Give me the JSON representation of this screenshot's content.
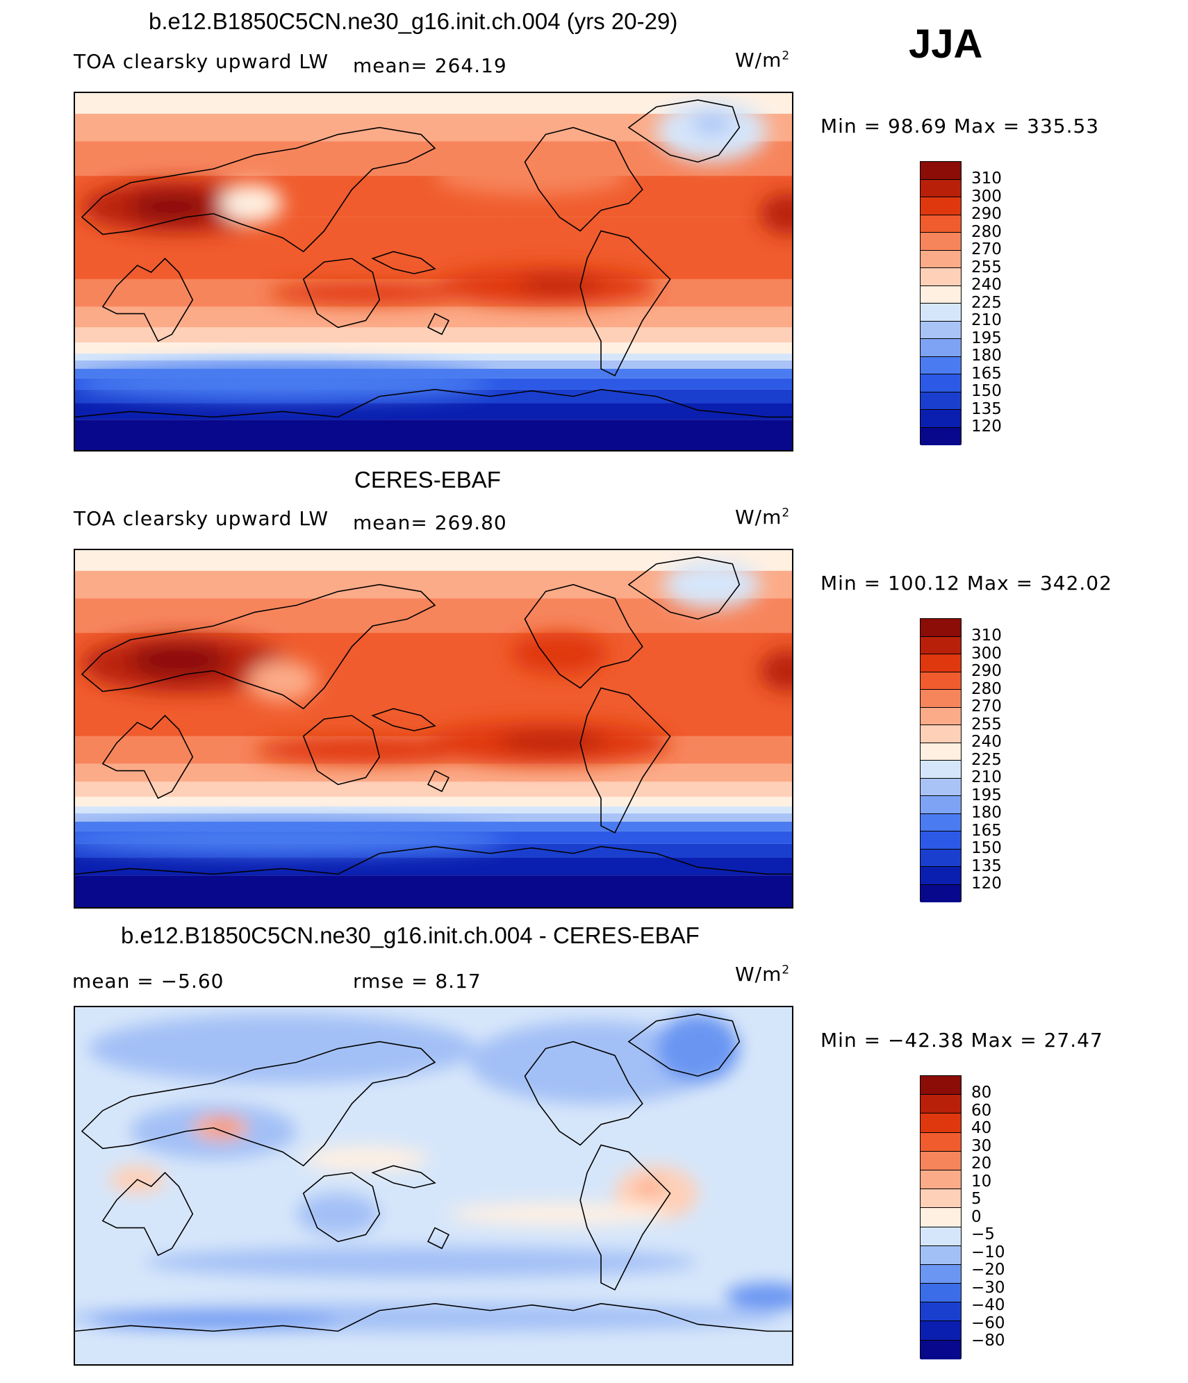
{
  "season": "JJA",
  "palette_main": [
    "#08088c",
    "#0a1fb0",
    "#1a3fcf",
    "#2c5ae6",
    "#4a7bf0",
    "#7ea3f5",
    "#a9c3f6",
    "#d6e6fa",
    "#fff0e2",
    "#ffd0b8",
    "#fcab88",
    "#f7855c",
    "#f05c2d",
    "#e0380e",
    "#b9200a",
    "#8c0c08"
  ],
  "palette_diff": [
    "#08088c",
    "#0a1fb0",
    "#1a3fcf",
    "#3b6de8",
    "#6b96f2",
    "#a3c0f6",
    "#d6e6fa",
    "#fff0e2",
    "#ffd0b8",
    "#fcab88",
    "#f7855c",
    "#f05c2d",
    "#e0380e",
    "#b9200a",
    "#8c0c08"
  ],
  "panels": [
    {
      "title": "b.e12.B1850C5CN.ne30_g16.init.ch.004 (yrs 20-29)",
      "left_label": "TOA clearsky upward LW",
      "center_label": "mean=  264.19",
      "units_base": "W/m",
      "units_exp": "2",
      "minmax": "Min =   98.69  Max  =  335.53",
      "colorbar_labels": [
        "310",
        "300",
        "290",
        "280",
        "270",
        "255",
        "240",
        "225",
        "210",
        "195",
        "180",
        "165",
        "150",
        "135",
        "120"
      ]
    },
    {
      "title": "CERES-EBAF",
      "left_label": "TOA clearsky upward LW",
      "center_label": "mean=  269.80",
      "units_base": "W/m",
      "units_exp": "2",
      "minmax": "Min  =  100.12  Max  =  342.02",
      "colorbar_labels": [
        "310",
        "300",
        "290",
        "280",
        "270",
        "255",
        "240",
        "225",
        "210",
        "195",
        "180",
        "165",
        "150",
        "135",
        "120"
      ]
    },
    {
      "title": "b.e12.B1850C5CN.ne30_g16.init.ch.004 - CERES-EBAF",
      "left_label": "mean  =    −5.60",
      "center_label": "rmse  =     8.17",
      "units_base": "W/m",
      "units_exp": "2",
      "minmax": "Min  =  −42.38  Max  =    27.47",
      "colorbar_labels": [
        "80",
        "60",
        "40",
        "30",
        "20",
        "10",
        "5",
        "0",
        "−5",
        "−10",
        "−20",
        "−30",
        "−40",
        "−60",
        "−80"
      ]
    }
  ]
}
